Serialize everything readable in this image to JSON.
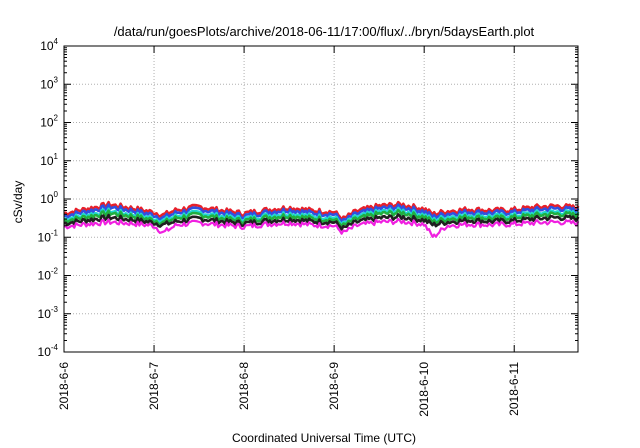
{
  "chart_data": {
    "type": "area",
    "title": "/data/run/goesPlots/archive/2018-06-11/17:00/flux/../bryn/5daysEarth.plot",
    "xlabel": "Coordinated Universal Time (UTC)",
    "ylabel": "cSv/day",
    "yscale": "log",
    "ylim": [
      0.0001,
      10000
    ],
    "xlim": [
      "2018-06-06",
      "2018-06-11T17:00"
    ],
    "grid": true,
    "legend": "none",
    "x_ticks": [
      "2018-6-6",
      "2018-6-7",
      "2018-6-8",
      "2018-6-9",
      "2018-6-10",
      "2018-6-11"
    ],
    "y_ticks": [
      {
        "base": "10",
        "exp": "-4"
      },
      {
        "base": "10",
        "exp": "-3"
      },
      {
        "base": "10",
        "exp": "-2"
      },
      {
        "base": "10",
        "exp": "-1"
      },
      {
        "base": "10",
        "exp": "0"
      },
      {
        "base": "10",
        "exp": "1"
      },
      {
        "base": "10",
        "exp": "2"
      },
      {
        "base": "10",
        "exp": "3"
      },
      {
        "base": "10",
        "exp": "4"
      }
    ],
    "x_days": [
      0,
      0.25,
      0.5,
      0.75,
      1.0,
      1.1,
      1.25,
      1.5,
      1.75,
      2.0,
      2.25,
      2.5,
      2.75,
      3.0,
      3.1,
      3.25,
      3.5,
      3.75,
      4.0,
      4.1,
      4.25,
      4.5,
      4.75,
      5.0,
      5.25,
      5.5,
      5.71
    ],
    "series": [
      {
        "color": "#e8202a",
        "values": [
          0.42,
          0.55,
          0.72,
          0.58,
          0.45,
          0.38,
          0.52,
          0.63,
          0.5,
          0.42,
          0.52,
          0.6,
          0.5,
          0.46,
          0.3,
          0.48,
          0.66,
          0.72,
          0.55,
          0.4,
          0.48,
          0.54,
          0.5,
          0.52,
          0.62,
          0.66,
          0.58
        ]
      },
      {
        "color": "#3050e0",
        "values": [
          0.36,
          0.47,
          0.62,
          0.5,
          0.38,
          0.32,
          0.44,
          0.54,
          0.43,
          0.36,
          0.45,
          0.52,
          0.43,
          0.4,
          0.26,
          0.41,
          0.56,
          0.62,
          0.47,
          0.34,
          0.41,
          0.46,
          0.43,
          0.45,
          0.53,
          0.57,
          0.5
        ]
      },
      {
        "color": "#20d8d0",
        "values": [
          0.3,
          0.38,
          0.48,
          0.4,
          0.31,
          0.27,
          0.36,
          0.44,
          0.35,
          0.3,
          0.37,
          0.42,
          0.35,
          0.33,
          0.22,
          0.34,
          0.46,
          0.5,
          0.38,
          0.28,
          0.34,
          0.38,
          0.35,
          0.37,
          0.43,
          0.46,
          0.41
        ]
      },
      {
        "color": "#20b040",
        "values": [
          0.27,
          0.34,
          0.43,
          0.36,
          0.28,
          0.24,
          0.32,
          0.39,
          0.31,
          0.27,
          0.33,
          0.37,
          0.31,
          0.29,
          0.2,
          0.3,
          0.41,
          0.44,
          0.34,
          0.25,
          0.3,
          0.34,
          0.31,
          0.33,
          0.38,
          0.41,
          0.37
        ]
      },
      {
        "color": "#202020",
        "values": [
          0.23,
          0.28,
          0.33,
          0.29,
          0.24,
          0.21,
          0.26,
          0.31,
          0.26,
          0.23,
          0.27,
          0.3,
          0.26,
          0.25,
          0.17,
          0.25,
          0.32,
          0.34,
          0.28,
          0.21,
          0.25,
          0.28,
          0.26,
          0.27,
          0.31,
          0.33,
          0.3
        ]
      },
      {
        "color": "#f020e0",
        "values": [
          0.19,
          0.22,
          0.25,
          0.23,
          0.2,
          0.13,
          0.21,
          0.24,
          0.21,
          0.19,
          0.22,
          0.24,
          0.21,
          0.2,
          0.13,
          0.2,
          0.25,
          0.26,
          0.22,
          0.1,
          0.2,
          0.22,
          0.21,
          0.22,
          0.24,
          0.25,
          0.23
        ]
      }
    ]
  }
}
